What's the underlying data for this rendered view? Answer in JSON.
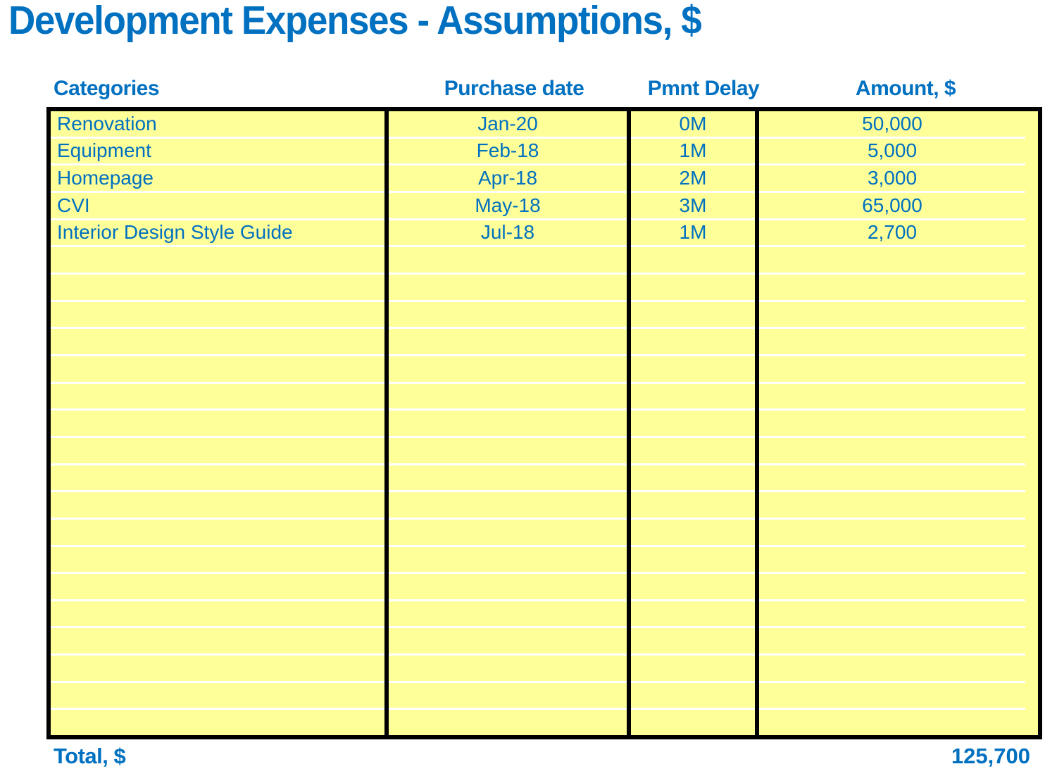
{
  "title": "Development Expenses - Assumptions, $",
  "colors": {
    "accent_blue": "#0070C0",
    "cell_yellow": "#FFFF99",
    "grid_border_black": "#000000",
    "row_separator_white": "#FFFFFF"
  },
  "table": {
    "columns": [
      {
        "key": "category",
        "label": "Categories",
        "align": "left"
      },
      {
        "key": "purchase_date",
        "label": "Purchase date",
        "align": "center"
      },
      {
        "key": "pmnt_delay",
        "label": "Pmnt Delay",
        "align": "center"
      },
      {
        "key": "amount",
        "label": "Amount, $",
        "align": "center"
      }
    ],
    "rows": [
      {
        "category": "Renovation",
        "purchase_date": "Jan-20",
        "pmnt_delay": "0M",
        "amount": "50,000"
      },
      {
        "category": "Equipment",
        "purchase_date": "Feb-18",
        "pmnt_delay": "1M",
        "amount": "5,000"
      },
      {
        "category": "Homepage",
        "purchase_date": "Apr-18",
        "pmnt_delay": "2M",
        "amount": "3,000"
      },
      {
        "category": "CVI",
        "purchase_date": "May-18",
        "pmnt_delay": "3M",
        "amount": "65,000"
      },
      {
        "category": "Interior Design Style Guide",
        "purchase_date": "Jul-18",
        "pmnt_delay": "1M",
        "amount": "2,700"
      }
    ],
    "empty_row_count": 18
  },
  "footer": {
    "total_label": "Total, $",
    "total_value": "125,700"
  }
}
